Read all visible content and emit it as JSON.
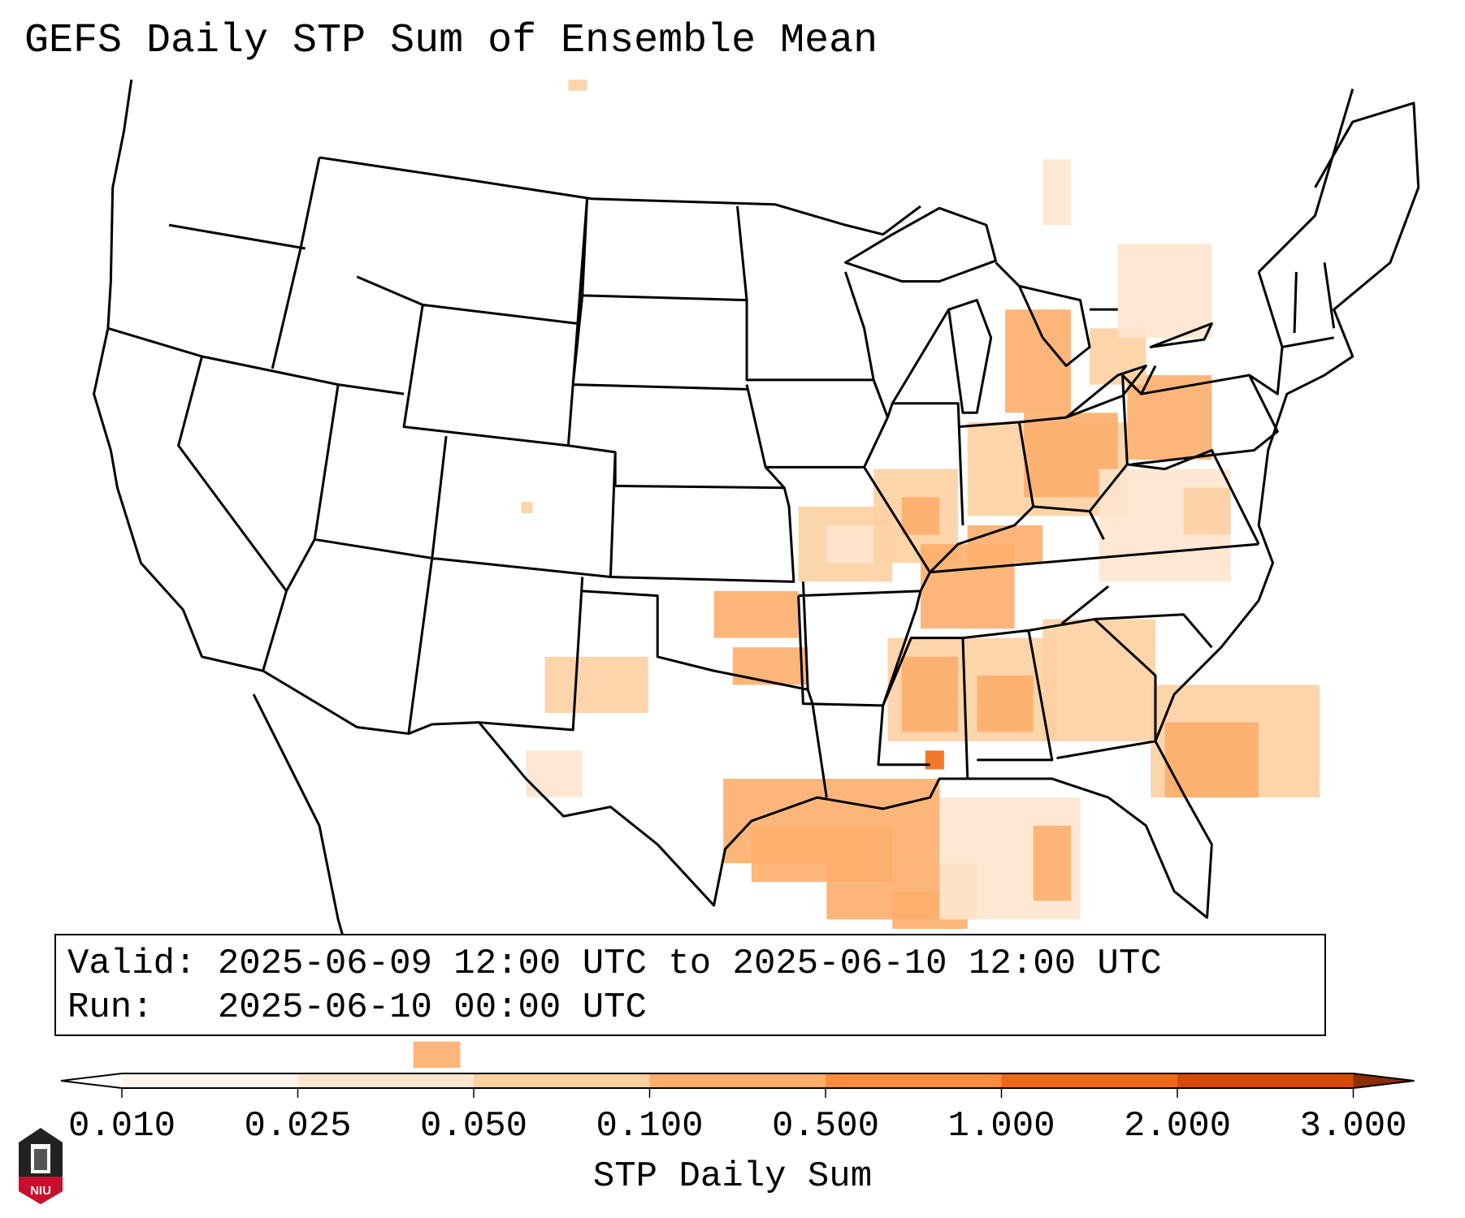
{
  "title": "GEFS Daily STP Sum of Ensemble Mean",
  "info": {
    "valid_label": "Valid:",
    "valid_value": "2025-06-09 12:00 UTC to 2025-06-10 12:00 UTC",
    "run_label": "Run:",
    "run_value": "2025-06-10 00:00 UTC"
  },
  "colorbar": {
    "label": "STP Daily Sum",
    "ticks": [
      "0.010",
      "0.025",
      "0.050",
      "0.100",
      "0.500",
      "1.000",
      "2.000",
      "3.000"
    ],
    "colors": [
      "#fff5eb",
      "#fee6ce",
      "#fdd0a2",
      "#fdae6b",
      "#fd8d3c",
      "#f16913",
      "#d94801"
    ],
    "under_color": "#ffffff",
    "over_color": "#8c2d04"
  },
  "logo": {
    "text": "NIU"
  }
}
